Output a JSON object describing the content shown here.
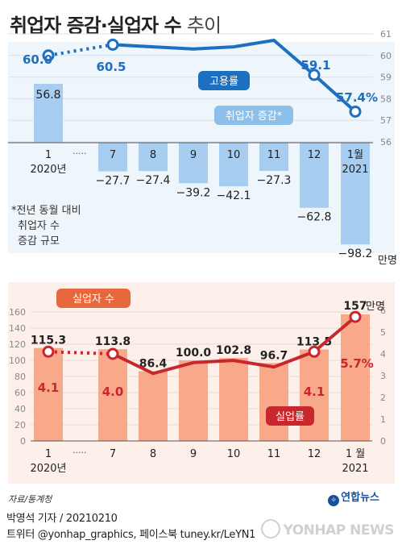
{
  "title": "취업자 증감·실업자 수",
  "title_sub": "추이",
  "source": "자료/통계청",
  "byline": "박영석 기자 / 20210210",
  "social": "트위터 @yonhap_graphics, 페이스북 tuney.kr/LeYN1",
  "logo_small": "연합뉴스",
  "watermark": "YONHAP NEWS",
  "chart_data": [
    {
      "type": "bar+line",
      "categories": [
        "1\n2020년",
        "7",
        "8",
        "9",
        "10",
        "11",
        "12",
        "1월\n2021"
      ],
      "bar_series": {
        "name": "취업자 증감",
        "values": [
          56.8,
          -27.7,
          -27.4,
          -39.2,
          -42.1,
          -27.3,
          -62.8,
          -98.2
        ],
        "labels": [
          "56.8",
          "−27.7",
          "−27.4",
          "−39.2",
          "−42.1",
          "−27.3",
          "−62.8",
          "−98.2"
        ],
        "unit": "만명",
        "color": "#a7cdf0"
      },
      "line_series": {
        "name": "고용률",
        "values": [
          60.0,
          60.5,
          60.4,
          60.3,
          60.4,
          60.7,
          59.1,
          57.4
        ],
        "labels": [
          "60.0",
          "60.5",
          "",
          "",
          "",
          "",
          "59.1",
          "57.4%"
        ],
        "color": "#1d6fc0",
        "ylim": [
          56,
          61
        ],
        "right_ticks": [
          "56",
          "57",
          "58",
          "59",
          "60",
          "61"
        ]
      },
      "note": [
        "*전년 동월 대비",
        "취업자 수",
        "증감 규모"
      ]
    },
    {
      "type": "bar+line",
      "categories": [
        "1\n2020년",
        "7",
        "8",
        "9",
        "10",
        "11",
        "12",
        "1 월\n2021"
      ],
      "bar_series": {
        "name": "실업자 수",
        "values": [
          115.3,
          113.8,
          86.4,
          100.0,
          102.8,
          96.7,
          113.5,
          157
        ],
        "labels": [
          "115.3",
          "113.8",
          "86.4",
          "100.0",
          "102.8",
          "96.7",
          "113.5",
          "157"
        ],
        "unit": "만명",
        "color": "#f7a98a",
        "ylim": [
          0,
          160
        ],
        "left_ticks": [
          "0",
          "20",
          "40",
          "60",
          "80",
          "100",
          "120",
          "140",
          "160"
        ]
      },
      "line_series": {
        "name": "실업률",
        "values": [
          4.1,
          4.0,
          3.1,
          3.6,
          3.7,
          3.4,
          4.1,
          5.7
        ],
        "labels": [
          "4.1",
          "4.0",
          "",
          "",
          "",
          "",
          "4.1",
          "5.7%"
        ],
        "color": "#c8282d",
        "ylim": [
          0,
          7
        ],
        "right_ticks": [
          "0",
          "1",
          "2",
          "3",
          "4",
          "5",
          "6"
        ]
      }
    }
  ]
}
